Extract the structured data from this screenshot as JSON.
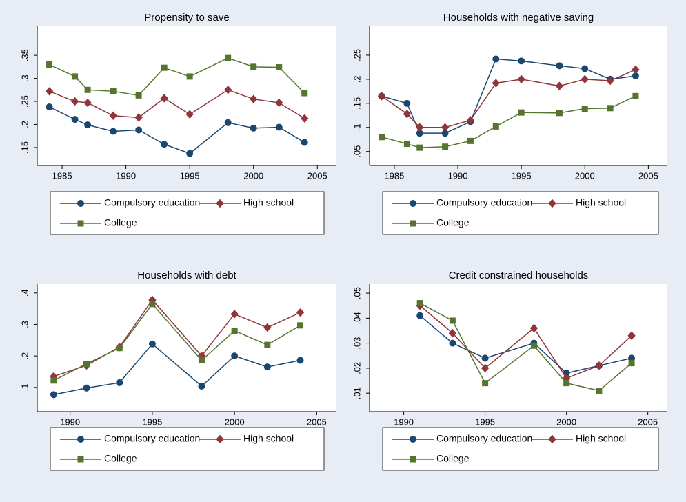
{
  "chart_data": [
    {
      "type": "line",
      "title": "Propensity to save",
      "x": [
        1984,
        1986,
        1987,
        1989,
        1991,
        1993,
        1995,
        1998,
        2000,
        2002,
        2004
      ],
      "series": [
        {
          "name": "Compulsory education",
          "color": "#1a476f",
          "marker": "circle",
          "values": [
            0.238,
            0.211,
            0.199,
            0.185,
            0.188,
            0.157,
            0.137,
            0.204,
            0.192,
            0.194,
            0.161
          ]
        },
        {
          "name": "High school",
          "color": "#90353b",
          "marker": "diamond",
          "values": [
            0.272,
            0.25,
            0.247,
            0.219,
            0.215,
            0.257,
            0.222,
            0.275,
            0.255,
            0.247,
            0.213
          ]
        },
        {
          "name": "College",
          "color": "#55752f",
          "marker": "square",
          "values": [
            0.33,
            0.304,
            0.275,
            0.272,
            0.263,
            0.323,
            0.304,
            0.344,
            0.325,
            0.324,
            0.268
          ]
        }
      ],
      "xlim": [
        1983.05,
        2006.5
      ],
      "xticks": [
        1985,
        1990,
        1995,
        2000,
        2005
      ],
      "ylim": [
        0.111,
        0.413
      ],
      "yticks": [
        {
          "value": 0.15,
          "label": ".15"
        },
        {
          "value": 0.2,
          "label": ".2"
        },
        {
          "value": 0.25,
          "label": ".25"
        },
        {
          "value": 0.3,
          "label": ".3"
        },
        {
          "value": 0.35,
          "label": ".35"
        }
      ]
    },
    {
      "type": "line",
      "title": "Households with negative saving",
      "x": [
        1984,
        1986,
        1987,
        1989,
        1991,
        1993,
        1995,
        1998,
        2000,
        2002,
        2004
      ],
      "series": [
        {
          "name": "Compulsory education",
          "color": "#1a476f",
          "marker": "circle",
          "values": [
            0.165,
            0.15,
            0.088,
            0.088,
            0.112,
            0.242,
            0.238,
            0.228,
            0.222,
            0.2,
            0.207
          ]
        },
        {
          "name": "High school",
          "color": "#90353b",
          "marker": "diamond",
          "values": [
            0.165,
            0.128,
            0.1,
            0.1,
            0.115,
            0.192,
            0.2,
            0.186,
            0.2,
            0.197,
            0.22
          ]
        },
        {
          "name": "College",
          "color": "#55752f",
          "marker": "square",
          "values": [
            0.08,
            0.066,
            0.058,
            0.06,
            0.072,
            0.102,
            0.131,
            0.13,
            0.139,
            0.14,
            0.165
          ]
        }
      ],
      "xlim": [
        1983.05,
        2006.5
      ],
      "xticks": [
        1985,
        1990,
        1995,
        2000,
        2005
      ],
      "ylim": [
        0.021,
        0.31
      ],
      "yticks": [
        {
          "value": 0.05,
          "label": ".05"
        },
        {
          "value": 0.1,
          "label": ".1"
        },
        {
          "value": 0.15,
          "label": ".15"
        },
        {
          "value": 0.2,
          "label": ".2"
        },
        {
          "value": 0.25,
          "label": ".25"
        }
      ]
    },
    {
      "type": "line",
      "title": "Households with debt",
      "x": [
        1989,
        1991,
        1993,
        1995,
        1998,
        2000,
        2002,
        2004
      ],
      "series": [
        {
          "name": "Compulsory education",
          "color": "#1a476f",
          "marker": "circle",
          "values": [
            0.077,
            0.098,
            0.115,
            0.238,
            0.104,
            0.2,
            0.165,
            0.186
          ]
        },
        {
          "name": "High school",
          "color": "#90353b",
          "marker": "diamond",
          "values": [
            0.135,
            0.17,
            0.228,
            0.378,
            0.2,
            0.333,
            0.29,
            0.338
          ]
        },
        {
          "name": "College",
          "color": "#55752f",
          "marker": "square",
          "values": [
            0.122,
            0.175,
            0.225,
            0.365,
            0.186,
            0.28,
            0.235,
            0.297
          ]
        }
      ],
      "xlim": [
        1988,
        2006.2
      ],
      "xticks": [
        1990,
        1995,
        2000,
        2005
      ],
      "ylim": [
        0.023,
        0.428
      ],
      "yticks": [
        {
          "value": 0.1,
          "label": ".1"
        },
        {
          "value": 0.2,
          "label": ".2"
        },
        {
          "value": 0.3,
          "label": ".3"
        },
        {
          "value": 0.4,
          "label": ".4"
        }
      ]
    },
    {
      "type": "line",
      "title": "Credit constrained households",
      "x": [
        1991,
        1993,
        1995,
        1998,
        2000,
        2002,
        2004
      ],
      "series": [
        {
          "name": "Compulsory education",
          "color": "#1a476f",
          "marker": "circle",
          "values": [
            0.041,
            0.03,
            0.024,
            0.03,
            0.018,
            0.021,
            0.024
          ]
        },
        {
          "name": "High school",
          "color": "#90353b",
          "marker": "diamond",
          "values": [
            0.045,
            0.034,
            0.02,
            0.036,
            0.016,
            0.021,
            0.033
          ]
        },
        {
          "name": "College",
          "color": "#55752f",
          "marker": "square",
          "values": [
            0.046,
            0.039,
            0.014,
            0.029,
            0.014,
            0.011,
            0.022
          ]
        }
      ],
      "xlim": [
        1987.9,
        2006.2
      ],
      "xticks": [
        1990,
        1995,
        2000,
        2005
      ],
      "ylim": [
        0.0026,
        0.0536
      ],
      "yticks": [
        {
          "value": 0.01,
          "label": ".01"
        },
        {
          "value": 0.02,
          "label": ".02"
        },
        {
          "value": 0.03,
          "label": ".03"
        },
        {
          "value": 0.04,
          "label": ".04"
        },
        {
          "value": 0.05,
          "label": ".05"
        }
      ]
    }
  ]
}
